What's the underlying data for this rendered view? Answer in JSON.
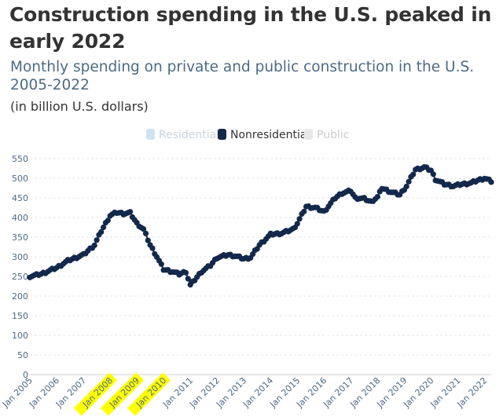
{
  "header": {
    "title": "Construction spending in the U.S. peaked in early 2022",
    "subtitle": "Monthly spending on private and public construction in the U.S. 2005-2022",
    "note": "(in billion U.S. dollars)"
  },
  "colors": {
    "nonresidential": "#13294b",
    "residential_disabled": "#cfe3f5",
    "public_disabled": "#e8e8e8",
    "grid": "#e6e6e6",
    "axis_text": "#4d6a86",
    "highlight": "#ffff00"
  },
  "chart_data": {
    "type": "line",
    "title": "",
    "xlabel": "",
    "ylabel": "",
    "ylim": [
      0,
      550
    ],
    "yticks": [
      0,
      50,
      100,
      150,
      200,
      250,
      300,
      350,
      400,
      450,
      500,
      550
    ],
    "x_tick_labels": [
      "Jan 2005",
      "Jan 2006",
      "Jan 2007",
      "Jan 2008",
      "Jan 2009",
      "Jan 2010",
      "Jan 2011",
      "Jan 2012",
      "Jan 2013",
      "Jan 2014",
      "Jan 2015",
      "Jan 2016",
      "Jan 2017",
      "Jan 2018",
      "Jan 2019",
      "Jan 2020",
      "Jan 2021",
      "Jan 2022"
    ],
    "highlighted_ticks": [
      "Jan 2008",
      "Jan 2009",
      "Jan 2010"
    ],
    "grid": true,
    "legend": {
      "placement": "top-center",
      "items": [
        {
          "label": "Residential",
          "active": false
        },
        {
          "label": "Nonresidential",
          "active": true
        },
        {
          "label": "Public",
          "active": false
        }
      ]
    },
    "series": [
      {
        "name": "Nonresidential",
        "anchors": [
          [
            "2005-01",
            250
          ],
          [
            "2005-06",
            256
          ],
          [
            "2006-01",
            272
          ],
          [
            "2006-06",
            290
          ],
          [
            "2007-01",
            305
          ],
          [
            "2007-06",
            330
          ],
          [
            "2007-09",
            365
          ],
          [
            "2008-01",
            405
          ],
          [
            "2008-04",
            413
          ],
          [
            "2008-07",
            410
          ],
          [
            "2008-10",
            412
          ],
          [
            "2009-01",
            385
          ],
          [
            "2009-04",
            370
          ],
          [
            "2009-07",
            330
          ],
          [
            "2009-10",
            300
          ],
          [
            "2010-01",
            268
          ],
          [
            "2010-05",
            262
          ],
          [
            "2010-08",
            256
          ],
          [
            "2010-11",
            262
          ],
          [
            "2011-01",
            228
          ],
          [
            "2011-06",
            262
          ],
          [
            "2011-10",
            278
          ],
          [
            "2012-01",
            298
          ],
          [
            "2012-06",
            305
          ],
          [
            "2012-09",
            302
          ],
          [
            "2013-01",
            295
          ],
          [
            "2013-04",
            298
          ],
          [
            "2013-08",
            330
          ],
          [
            "2014-01",
            357
          ],
          [
            "2014-06",
            360
          ],
          [
            "2014-11",
            370
          ],
          [
            "2015-01",
            385
          ],
          [
            "2015-05",
            428
          ],
          [
            "2015-09",
            425
          ],
          [
            "2016-01",
            415
          ],
          [
            "2016-06",
            450
          ],
          [
            "2016-09",
            462
          ],
          [
            "2017-01",
            468
          ],
          [
            "2017-03",
            450
          ],
          [
            "2017-07",
            448
          ],
          [
            "2017-10",
            440
          ],
          [
            "2018-01",
            452
          ],
          [
            "2018-03",
            475
          ],
          [
            "2018-07",
            465
          ],
          [
            "2018-11",
            458
          ],
          [
            "2019-02",
            480
          ],
          [
            "2019-06",
            522
          ],
          [
            "2019-10",
            528
          ],
          [
            "2020-01",
            520
          ],
          [
            "2020-03",
            497
          ],
          [
            "2020-07",
            485
          ],
          [
            "2020-11",
            480
          ],
          [
            "2021-03",
            485
          ],
          [
            "2021-07",
            488
          ],
          [
            "2021-10",
            495
          ],
          [
            "2022-01",
            500
          ],
          [
            "2022-04",
            492
          ]
        ]
      }
    ]
  }
}
